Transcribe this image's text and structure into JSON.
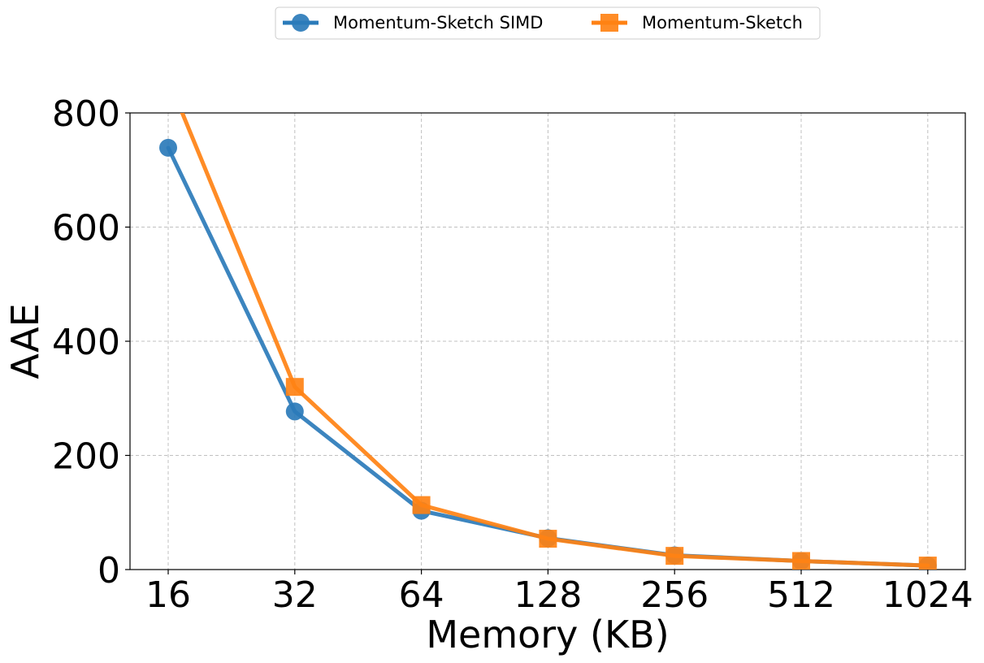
{
  "chart_data": {
    "type": "line",
    "title": "",
    "xlabel": "Memory (KB)",
    "ylabel": "AAE",
    "categories": [
      "16",
      "32",
      "64",
      "128",
      "256",
      "512",
      "1024"
    ],
    "ylim": [
      0,
      800
    ],
    "yticks": [
      "0",
      "200",
      "400",
      "600",
      "800"
    ],
    "grid": true,
    "legend_position": "top-center",
    "series": [
      {
        "name": "Momentum-Sketch SIMD",
        "color": "#2b7bba",
        "marker": "circle",
        "values": [
          739,
          277,
          103,
          55,
          25,
          15,
          7
        ]
      },
      {
        "name": "Momentum-Sketch",
        "color": "#ff8214",
        "marker": "square",
        "values": [
          860,
          320,
          113,
          54,
          24,
          15,
          7
        ]
      }
    ]
  }
}
